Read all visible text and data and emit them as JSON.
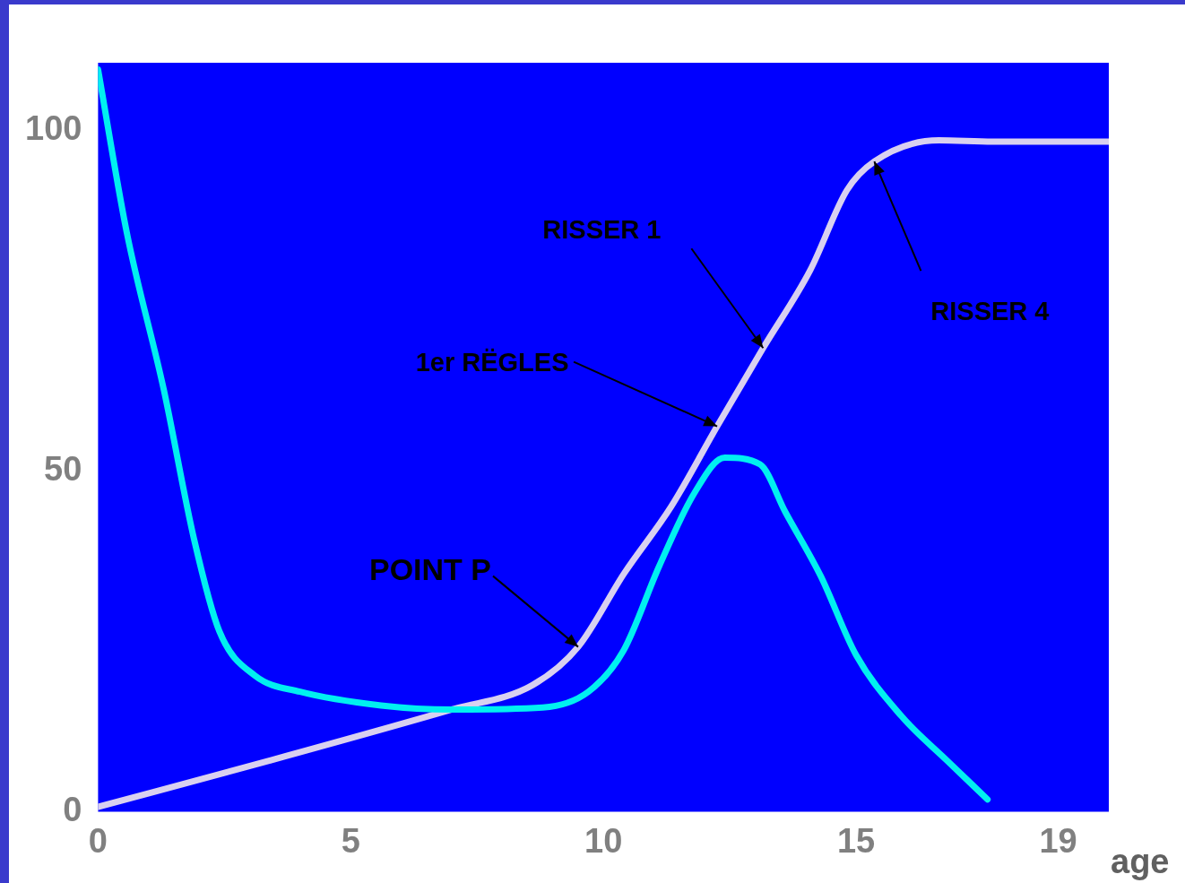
{
  "chart_data": {
    "type": "line",
    "xlabel": "age",
    "xlim": [
      0,
      20
    ],
    "xticks": [
      0,
      5,
      10,
      15,
      19
    ],
    "ylim": [
      0,
      110
    ],
    "yticks": [
      0,
      50,
      100
    ],
    "grid": false,
    "legend": false,
    "marker": "none",
    "line_style": "solid",
    "series": [
      {
        "color": "#00f0f0",
        "x": [
          0,
          0.57,
          1.3,
          1.9,
          2.4,
          3.1,
          4,
          5.6,
          7,
          8.8,
          9.7,
          10.4,
          11.1,
          11.8,
          12.4,
          13.1,
          13.6,
          14.3,
          15,
          15.9,
          16.8,
          17.6
        ],
        "values": [
          109,
          85,
          62,
          40,
          26.5,
          20,
          17.6,
          15.6,
          15,
          15.3,
          17.6,
          23.7,
          36,
          46.8,
          52,
          51,
          44,
          34.6,
          23,
          14,
          7.5,
          1.8
        ]
      },
      {
        "color": "#d8d0f0",
        "x": [
          0,
          3.4,
          7,
          8.6,
          9.5,
          10.41,
          11.34,
          12.25,
          13.16,
          14.09,
          14.82,
          15.36,
          16.64,
          17.7,
          20
        ],
        "values": [
          0.7,
          7.5,
          15,
          18.6,
          24.2,
          35,
          44.8,
          56.6,
          68.1,
          79.5,
          91.3,
          95.5,
          98.6,
          98.4,
          98.4
        ]
      }
    ],
    "annotations": [
      {
        "text": "RISSER 1",
        "x": 13.16,
        "y": 68.1
      },
      {
        "text": "1er RËGLES",
        "x": 12.25,
        "y": 56.6
      },
      {
        "text": "POINT P",
        "x": 9.5,
        "y": 24.2
      },
      {
        "text": "RISSER 4",
        "x": 15.36,
        "y": 95.5
      }
    ]
  }
}
